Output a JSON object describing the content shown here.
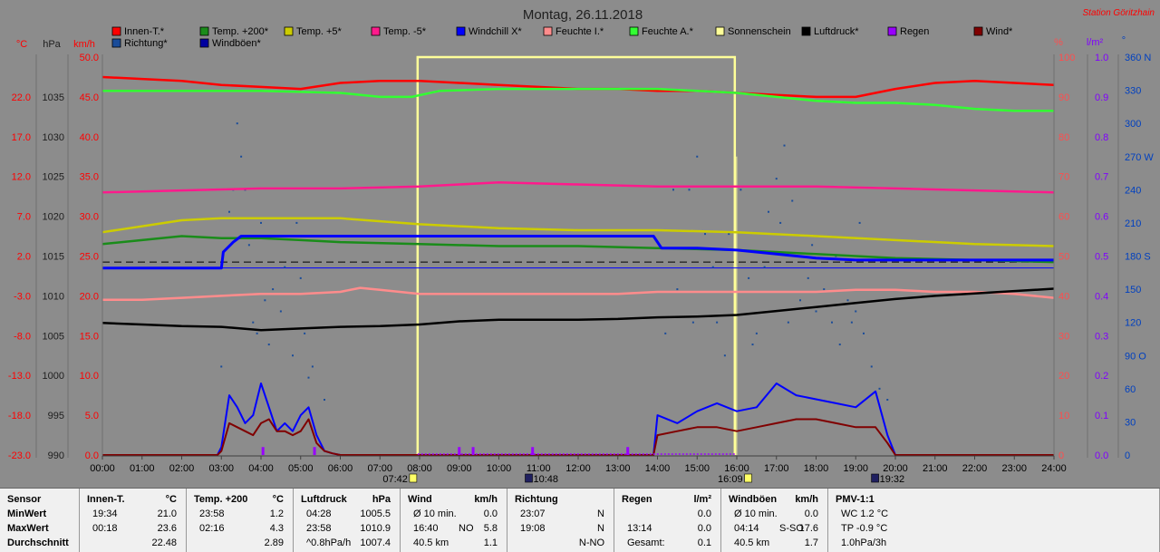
{
  "title": "Montag, 26.11.2018",
  "station": "Station Göritzhain",
  "legend": [
    {
      "label": "Innen-T.*",
      "color": "#ff0000"
    },
    {
      "label": "Temp. +200*",
      "color": "#1a8c1a"
    },
    {
      "label": "Temp. +5*",
      "color": "#cccc00"
    },
    {
      "label": "Temp. -5*",
      "color": "#ff1a8c"
    },
    {
      "label": "Windchill X*",
      "color": "#0000ff"
    },
    {
      "label": "Feuchte I.*",
      "color": "#ff8c8c"
    },
    {
      "label": "Feuchte A.*",
      "color": "#33ff33"
    },
    {
      "label": "Sonnenschein",
      "color": "#ffff99"
    },
    {
      "label": "Luftdruck*",
      "color": "#000000"
    },
    {
      "label": "Regen",
      "color": "#9900ff"
    },
    {
      "label": "Wind*",
      "color": "#800000"
    },
    {
      "label": "Richtung*",
      "color": "#1a4c99"
    },
    {
      "label": "Windböen*",
      "color": "#0000a0"
    }
  ],
  "axes_units": {
    "temp": "°C",
    "pressure": "hPa",
    "wind": "km/h",
    "humidity": "%",
    "rain": "l/m²",
    "direction": "°"
  },
  "chart_data": {
    "type": "line",
    "x_ticks": [
      "00:00",
      "01:00",
      "02:00",
      "03:00",
      "04:00",
      "05:00",
      "06:00",
      "07:00",
      "08:00",
      "09:00",
      "10:00",
      "11:00",
      "12:00",
      "13:00",
      "14:00",
      "15:00",
      "16:00",
      "17:00",
      "18:00",
      "19:00",
      "20:00",
      "21:00",
      "22:00",
      "23:00",
      "24:00"
    ],
    "axis_temp": [
      "22.0",
      "17.0",
      "12.0",
      "7.0",
      "2.0",
      "-3.0",
      "-8.0",
      "-13.0",
      "-18.0",
      "-23.0"
    ],
    "axis_pressure": [
      "1035",
      "1030",
      "1025",
      "1020",
      "1015",
      "1010",
      "1005",
      "1000",
      "995",
      "990"
    ],
    "axis_wind": [
      "50.0",
      "45.0",
      "40.0",
      "35.0",
      "30.0",
      "25.0",
      "20.0",
      "15.0",
      "10.0",
      "5.0",
      "0.0"
    ],
    "axis_humidity": [
      "100",
      "90",
      "80",
      "70",
      "60",
      "50",
      "40",
      "30",
      "20",
      "10",
      "0"
    ],
    "axis_rain": [
      "1.0",
      "0.9",
      "0.8",
      "0.7",
      "0.6",
      "0.5",
      "0.4",
      "0.3",
      "0.2",
      "0.1",
      "0.0"
    ],
    "axis_direction": [
      "360 N",
      "330",
      "300",
      "270 W",
      "240",
      "210",
      "180 S",
      "150",
      "120",
      "90 O",
      "60",
      "30",
      "0"
    ],
    "sun_events": [
      "07:42",
      "10:48",
      "16:09",
      "19:32"
    ],
    "sunshine": {
      "start_h": 7.95,
      "end_h": 15.95,
      "level": 100
    },
    "series": [
      {
        "name": "Innen-T.*",
        "axis": "humidity",
        "x": [
          0,
          1,
          2,
          3,
          4,
          5,
          6,
          7,
          8,
          9,
          10,
          11,
          12,
          13,
          14,
          15,
          16,
          17,
          18,
          19,
          20,
          21,
          22,
          23,
          24
        ],
        "values": [
          95,
          94.5,
          94,
          93,
          92.5,
          92,
          93.5,
          94,
          94,
          93.5,
          93,
          92.5,
          92,
          92,
          91.5,
          91.5,
          91,
          90.5,
          90,
          90,
          92,
          93.5,
          94,
          93.5,
          93
        ]
      },
      {
        "name": "Feuchte A.*",
        "axis": "humidity",
        "x": [
          0,
          2,
          4,
          6,
          7,
          7.8,
          8.5,
          10,
          12,
          13.5,
          14,
          15,
          16,
          17,
          18,
          19,
          20,
          21,
          22,
          23,
          24
        ],
        "values": [
          91.5,
          91.5,
          91.5,
          91,
          90,
          90,
          91.5,
          92,
          92,
          92,
          92,
          91.5,
          91,
          90,
          89,
          88.5,
          88.5,
          88,
          87,
          86.5,
          86.5
        ]
      },
      {
        "name": "Temp. -5*",
        "axis": "humidity",
        "x": [
          0,
          2,
          4,
          6,
          8,
          10,
          12,
          14,
          16,
          18,
          20,
          22,
          24
        ],
        "values": [
          66,
          66.5,
          67,
          67,
          67.5,
          68.5,
          68,
          67.5,
          67.5,
          67.5,
          67,
          66.5,
          66
        ]
      },
      {
        "name": "Temp. +5*",
        "axis": "humidity",
        "x": [
          0,
          1,
          2,
          3,
          4,
          6,
          8,
          10,
          12,
          14,
          16,
          18,
          20,
          22,
          24
        ],
        "values": [
          56,
          57.5,
          59,
          59.5,
          59.5,
          59.5,
          58,
          57,
          56.5,
          56.5,
          56,
          55,
          54,
          53,
          52.5
        ]
      },
      {
        "name": "Temp. +200*",
        "axis": "humidity",
        "x": [
          0,
          1,
          2,
          3,
          4,
          5,
          6,
          8,
          10,
          12,
          14,
          16,
          18,
          20,
          22,
          24
        ],
        "values": [
          53,
          54,
          55,
          54.5,
          54.5,
          54,
          53.5,
          53,
          52.5,
          52.5,
          52,
          51.5,
          50.5,
          49.5,
          49,
          48.5
        ]
      },
      {
        "name": "Windchill X*",
        "axis": "humidity",
        "x": [
          0,
          3,
          3.05,
          3.3,
          3.5,
          4,
          6,
          8,
          10,
          12,
          13.9,
          14.1,
          15,
          16,
          17,
          18,
          19,
          20,
          22,
          24
        ],
        "values": [
          47,
          47,
          51,
          53.5,
          55,
          55,
          55,
          55,
          55,
          55,
          55,
          52,
          52,
          51.5,
          50.5,
          49.5,
          49,
          49,
          49,
          49
        ]
      },
      {
        "name": "Feuchte I.*",
        "axis": "humidity",
        "x": [
          0,
          1,
          2,
          3,
          4,
          5,
          6,
          6.5,
          7,
          7.5,
          8,
          9,
          10,
          11,
          12,
          13,
          14,
          15,
          16,
          17,
          18,
          19,
          20,
          21,
          22,
          23,
          24
        ],
        "values": [
          39,
          39,
          39.5,
          40,
          40.5,
          40.5,
          41,
          42,
          41.5,
          41,
          40.5,
          40.5,
          40.5,
          40.5,
          40.5,
          40.5,
          41,
          41,
          41,
          41,
          41,
          41.5,
          41.5,
          41,
          41,
          40.5,
          39.5
        ]
      },
      {
        "name": "Luftdruck*",
        "axis": "pressure",
        "x": [
          0,
          1,
          2,
          3,
          4,
          5,
          6,
          7,
          8,
          9,
          10,
          11,
          12,
          13,
          14,
          15,
          16,
          17,
          18,
          19,
          20,
          21,
          22,
          23,
          24
        ],
        "values": [
          1006.6,
          1006.4,
          1006.2,
          1006.1,
          1005.7,
          1005.9,
          1006.1,
          1006.2,
          1006.4,
          1006.8,
          1007.0,
          1007.0,
          1007.0,
          1007.1,
          1007.3,
          1007.4,
          1007.6,
          1008.1,
          1008.6,
          1009.1,
          1009.6,
          1010.0,
          1010.3,
          1010.6,
          1010.9
        ]
      }
    ],
    "hline_humidity": 48,
    "wind": {
      "x": [
        0,
        2.9,
        3.0,
        3.2,
        3.4,
        3.6,
        3.8,
        4.0,
        4.2,
        4.4,
        4.6,
        4.8,
        5.0,
        5.2,
        5.4,
        5.6,
        5.8,
        6.0,
        6.1,
        13.9,
        14.0,
        14.5,
        15.0,
        15.5,
        16.0,
        16.5,
        17.0,
        17.5,
        18.0,
        18.5,
        19.0,
        19.5,
        19.8,
        20.0,
        24
      ],
      "values": [
        0,
        0,
        0.5,
        4,
        3.5,
        3,
        2.5,
        4,
        4.5,
        3,
        3,
        2.5,
        3,
        4.5,
        1.5,
        0.5,
        0.2,
        0,
        0,
        0,
        2.5,
        3,
        3.5,
        3.5,
        3,
        3.5,
        4,
        4.5,
        4.5,
        4,
        3.5,
        3.5,
        1.5,
        0,
        0
      ]
    },
    "gusts": {
      "x": [
        0,
        2.9,
        3.0,
        3.2,
        3.4,
        3.6,
        3.8,
        4.0,
        4.2,
        4.4,
        4.6,
        4.8,
        5.0,
        5.2,
        5.4,
        5.6,
        5.8,
        6.0,
        6.1,
        13.9,
        14.0,
        14.5,
        15.0,
        15.5,
        16.0,
        16.5,
        17.0,
        17.5,
        18.0,
        18.5,
        19.0,
        19.5,
        19.8,
        20.0,
        24
      ],
      "values": [
        0,
        0,
        1,
        7.5,
        6,
        4,
        5,
        9,
        6,
        3,
        4,
        3,
        5,
        6,
        2.5,
        0.5,
        0.2,
        0,
        0,
        0,
        5,
        4,
        5.5,
        6.5,
        5.5,
        6,
        9,
        7.5,
        7,
        6.5,
        6,
        8,
        2.5,
        0,
        0
      ]
    },
    "rain_marks": [
      {
        "h": 4.05,
        "v": 0.02
      },
      {
        "h": 5.35,
        "v": 0.02
      },
      {
        "h": 9.0,
        "v": 0.02
      },
      {
        "h": 9.35,
        "v": 0.02
      },
      {
        "h": 10.85,
        "v": 0.02
      },
      {
        "h": 13.25,
        "v": 0.02
      }
    ],
    "direction_points": [
      {
        "h": 3.4,
        "d": 300
      },
      {
        "h": 3.5,
        "d": 270
      },
      {
        "h": 3.3,
        "d": 240
      },
      {
        "h": 3.6,
        "d": 240
      },
      {
        "h": 3.2,
        "d": 220
      },
      {
        "h": 3.0,
        "d": 80
      },
      {
        "h": 3.8,
        "d": 120
      },
      {
        "h": 4.1,
        "d": 140
      },
      {
        "h": 3.7,
        "d": 190
      },
      {
        "h": 4.3,
        "d": 150
      },
      {
        "h": 4.6,
        "d": 170
      },
      {
        "h": 4.9,
        "d": 210
      },
      {
        "h": 4.2,
        "d": 100
      },
      {
        "h": 4.5,
        "d": 130
      },
      {
        "h": 4.8,
        "d": 90
      },
      {
        "h": 5.1,
        "d": 110
      },
      {
        "h": 5.3,
        "d": 80
      },
      {
        "h": 5.6,
        "d": 50
      },
      {
        "h": 5.0,
        "d": 160
      },
      {
        "h": 4.0,
        "d": 210
      },
      {
        "h": 3.9,
        "d": 110
      },
      {
        "h": 5.2,
        "d": 70
      },
      {
        "h": 14.2,
        "d": 110
      },
      {
        "h": 14.5,
        "d": 150
      },
      {
        "h": 14.8,
        "d": 240
      },
      {
        "h": 15.0,
        "d": 270
      },
      {
        "h": 15.2,
        "d": 200
      },
      {
        "h": 15.5,
        "d": 120
      },
      {
        "h": 15.7,
        "d": 90
      },
      {
        "h": 15.4,
        "d": 170
      },
      {
        "h": 14.4,
        "d": 240
      },
      {
        "h": 14.9,
        "d": 120
      },
      {
        "h": 15.8,
        "d": 200
      },
      {
        "h": 16.1,
        "d": 240
      },
      {
        "h": 16.3,
        "d": 160
      },
      {
        "h": 16.5,
        "d": 110
      },
      {
        "h": 16.8,
        "d": 220
      },
      {
        "h": 17.0,
        "d": 250
      },
      {
        "h": 17.2,
        "d": 280
      },
      {
        "h": 17.4,
        "d": 230
      },
      {
        "h": 17.6,
        "d": 140
      },
      {
        "h": 17.8,
        "d": 160
      },
      {
        "h": 18.0,
        "d": 130
      },
      {
        "h": 18.2,
        "d": 150
      },
      {
        "h": 18.4,
        "d": 120
      },
      {
        "h": 18.6,
        "d": 100
      },
      {
        "h": 18.8,
        "d": 140
      },
      {
        "h": 19.0,
        "d": 130
      },
      {
        "h": 19.2,
        "d": 110
      },
      {
        "h": 19.4,
        "d": 80
      },
      {
        "h": 19.6,
        "d": 60
      },
      {
        "h": 19.8,
        "d": 50
      },
      {
        "h": 16.7,
        "d": 170
      },
      {
        "h": 17.3,
        "d": 120
      },
      {
        "h": 17.9,
        "d": 190
      },
      {
        "h": 18.5,
        "d": 180
      },
      {
        "h": 19.1,
        "d": 210
      },
      {
        "h": 16.4,
        "d": 100
      },
      {
        "h": 17.1,
        "d": 210
      },
      {
        "h": 18.9,
        "d": 120
      }
    ]
  },
  "stats": [
    {
      "title": "Sensor",
      "unit": "",
      "rows": [
        [
          "MinWert",
          "",
          ""
        ],
        [
          "MaxWert",
          "",
          ""
        ],
        [
          "Durchschnitt",
          "",
          ""
        ]
      ]
    },
    {
      "title": "Innen-T.",
      "unit": "°C",
      "rows": [
        [
          "19:34",
          "",
          "21.0"
        ],
        [
          "00:18",
          "",
          "23.6"
        ],
        [
          "",
          "",
          "22.48"
        ]
      ]
    },
    {
      "title": "Temp. +200",
      "unit": "°C",
      "rows": [
        [
          "23:58",
          "",
          "1.2"
        ],
        [
          "02:16",
          "",
          "4.3"
        ],
        [
          "",
          "",
          "2.89"
        ]
      ]
    },
    {
      "title": "Luftdruck",
      "unit": "hPa",
      "rows": [
        [
          "04:28",
          "",
          "1005.5"
        ],
        [
          "23:58",
          "",
          "1010.9"
        ],
        [
          "^0.8hPa/h",
          "",
          "1007.4"
        ]
      ]
    },
    {
      "title": "Wind",
      "unit": "km/h",
      "rows": [
        [
          "Ø 10 min.",
          "",
          "0.0"
        ],
        [
          "16:40",
          "NO",
          "5.8"
        ],
        [
          "40.5 km",
          "",
          "1.1"
        ]
      ]
    },
    {
      "title": "Richtung",
      "unit": "",
      "rows": [
        [
          "23:07",
          "",
          "N"
        ],
        [
          "19:08",
          "",
          "N"
        ],
        [
          "",
          "",
          "N-NO"
        ]
      ]
    },
    {
      "title": "Regen",
      "unit": "l/m²",
      "rows": [
        [
          "",
          "",
          "0.0"
        ],
        [
          "13:14",
          "",
          "0.0"
        ],
        [
          "Gesamt:",
          "",
          "0.1"
        ]
      ]
    },
    {
      "title": "Windböen",
      "unit": "km/h",
      "rows": [
        [
          "Ø 10 min.",
          "",
          "0.0"
        ],
        [
          "04:14",
          "S-SO",
          "17.6"
        ],
        [
          "40.5 km",
          "",
          "1.7"
        ]
      ]
    },
    {
      "title": "PMV-1:1",
      "unit": "",
      "rows": [
        [
          "WC 1.2 °C",
          "",
          ""
        ],
        [
          "TP -0.9 °C",
          "",
          ""
        ],
        [
          "1.0hPa/3h",
          "",
          ""
        ]
      ]
    }
  ]
}
